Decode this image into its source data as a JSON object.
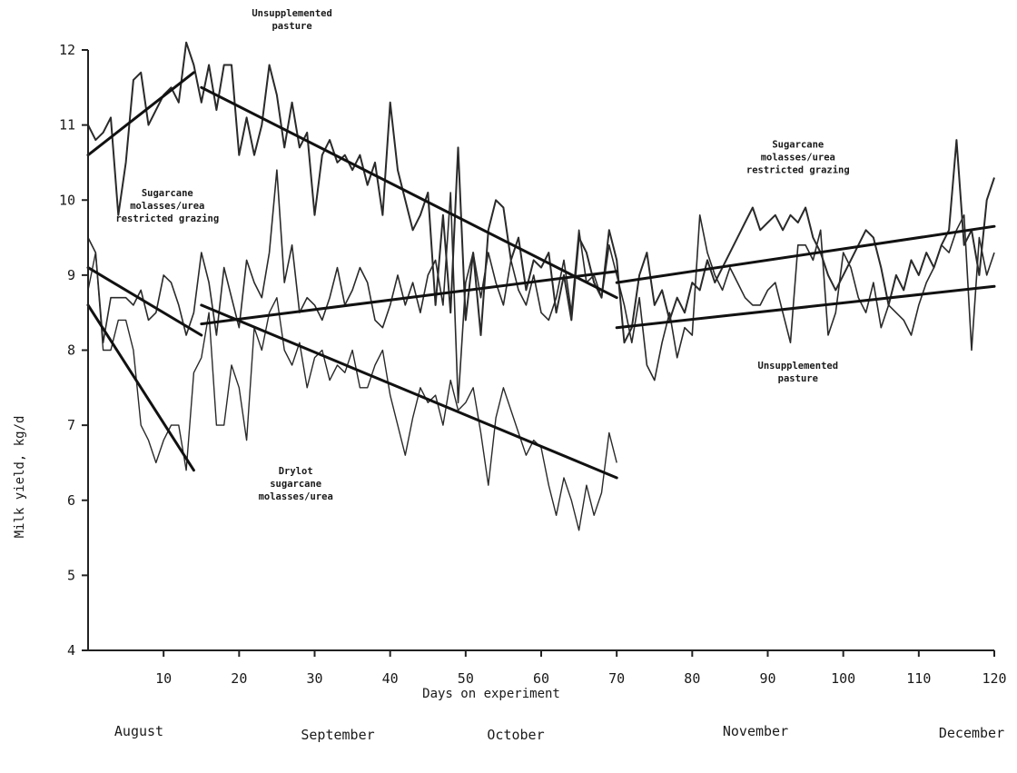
{
  "chart_data": {
    "type": "line",
    "title": "",
    "xlabel": "Days on experiment",
    "ylabel": "Milk yield, kg/d",
    "xlim": [
      0,
      120
    ],
    "ylim": [
      4,
      12
    ],
    "x_ticks": [
      10,
      20,
      30,
      40,
      50,
      60,
      70,
      80,
      90,
      100,
      110,
      120
    ],
    "y_ticks": [
      4,
      5,
      6,
      7,
      8,
      9,
      10,
      11,
      12
    ],
    "grid": false,
    "months": [
      "August",
      "September",
      "October",
      "November",
      "December"
    ],
    "annotations": [
      {
        "key": "unsupp_top",
        "lines": [
          "Unsupplemented",
          "pasture"
        ],
        "x": 27,
        "y": 12.45
      },
      {
        "key": "sug_left",
        "lines": [
          "Sugarcane",
          "molasses/urea",
          "restricted grazing"
        ],
        "x": 10.5,
        "y": 10.05
      },
      {
        "key": "drylot",
        "lines": [
          "Drylot",
          "sugarcane",
          "molasses/urea"
        ],
        "x": 27.5,
        "y": 6.35
      },
      {
        "key": "sug_right",
        "lines": [
          "Sugarcane",
          "molasses/urea",
          "restricted grazing"
        ],
        "x": 94,
        "y": 10.7
      },
      {
        "key": "unsupp_right",
        "lines": [
          "Unsupplemented",
          "pasture"
        ],
        "x": 94,
        "y": 7.75
      }
    ],
    "series": [
      {
        "x": [
          0,
          1,
          2,
          3,
          4,
          5,
          6,
          7,
          8,
          9,
          10,
          11,
          12,
          13,
          14,
          15,
          16,
          17,
          18,
          19,
          20,
          21,
          22,
          23,
          24,
          25,
          26,
          27,
          28,
          29,
          30,
          31,
          32,
          33,
          34,
          35,
          36,
          37,
          38,
          39,
          40,
          41,
          42,
          43,
          44,
          45,
          46,
          47,
          48,
          49,
          50,
          51,
          52,
          53,
          54,
          55,
          56,
          57,
          58,
          59,
          60,
          61,
          62,
          63,
          64,
          65,
          66,
          67,
          68,
          69,
          70,
          71,
          72,
          73,
          74,
          75,
          76,
          77,
          78,
          79,
          80,
          81,
          82,
          83,
          84,
          85,
          86,
          87,
          88,
          89,
          90,
          91,
          92,
          93,
          94,
          95,
          96,
          97,
          98,
          99,
          100,
          101,
          102,
          103,
          104,
          105,
          106,
          107,
          108,
          109,
          110,
          111,
          112,
          113,
          114,
          115,
          116,
          117,
          118,
          119,
          120
        ],
        "y": [
          11.0,
          10.8,
          10.9,
          11.1,
          9.8,
          10.5,
          11.6,
          11.7,
          11.0,
          11.2,
          11.4,
          11.5,
          11.3,
          12.1,
          11.8,
          11.3,
          11.8,
          11.2,
          11.8,
          11.8,
          10.6,
          11.1,
          10.6,
          11.0,
          11.8,
          11.4,
          10.7,
          11.3,
          10.7,
          10.9,
          9.8,
          10.6,
          10.8,
          10.5,
          10.6,
          10.4,
          10.6,
          10.2,
          10.5,
          9.8,
          11.3,
          10.4,
          10.0,
          9.6,
          9.8,
          10.1,
          8.6,
          9.8,
          8.5,
          10.7,
          8.4,
          9.3,
          8.2,
          9.6,
          10.0,
          9.9,
          9.2,
          9.5,
          8.8,
          9.2,
          9.1,
          9.3,
          8.5,
          9.0,
          8.4,
          9.5,
          9.3,
          8.9,
          8.7,
          9.6,
          9.2,
          8.1,
          8.3,
          9.0,
          9.3,
          8.6,
          8.8,
          8.4,
          8.7,
          8.5,
          8.9,
          8.8,
          9.2,
          8.9,
          9.1,
          9.3,
          9.5,
          9.7,
          9.9,
          9.6,
          9.7,
          9.8,
          9.6,
          9.8,
          9.7,
          9.9,
          9.5,
          9.3,
          9.0,
          8.8,
          9.0,
          9.2,
          9.4,
          9.6,
          9.5,
          9.1,
          8.6,
          9.0,
          8.8,
          9.2,
          9.0,
          9.3,
          9.1,
          9.4,
          9.6,
          10.8,
          9.4,
          9.6,
          9.0,
          10.0,
          10.3
        ]
      },
      {
        "x": [
          0,
          1,
          2,
          3,
          4,
          5,
          6,
          7,
          8,
          9,
          10,
          11,
          12,
          13,
          14,
          15,
          16,
          17,
          18,
          19,
          20,
          21,
          22,
          23,
          24,
          25,
          26,
          27,
          28,
          29,
          30,
          31,
          32,
          33,
          34,
          35,
          36,
          37,
          38,
          39,
          40,
          41,
          42,
          43,
          44,
          45,
          46,
          47,
          48,
          49,
          50,
          51,
          52,
          53,
          54,
          55,
          56,
          57,
          58,
          59,
          60,
          61,
          62,
          63,
          64,
          65,
          66,
          67,
          68,
          69,
          70,
          71,
          72,
          73,
          74,
          75,
          76,
          77,
          78,
          79,
          80,
          81,
          82,
          83,
          84,
          85,
          86,
          87,
          88,
          89,
          90,
          91,
          92,
          93,
          94,
          95,
          96,
          97,
          98,
          99,
          100,
          101,
          102,
          103,
          104,
          105,
          106,
          107,
          108,
          109,
          110,
          111,
          112,
          113,
          114,
          115,
          116,
          117,
          118,
          119,
          120
        ],
        "y": [
          9.5,
          9.3,
          8.1,
          8.7,
          8.7,
          8.7,
          8.6,
          8.8,
          8.4,
          8.5,
          9.0,
          8.9,
          8.6,
          8.2,
          8.5,
          9.3,
          8.9,
          8.2,
          9.1,
          8.7,
          8.3,
          9.2,
          8.9,
          8.7,
          9.3,
          10.4,
          8.9,
          9.4,
          8.5,
          8.7,
          8.6,
          8.4,
          8.7,
          9.1,
          8.6,
          8.8,
          9.1,
          8.9,
          8.4,
          8.3,
          8.6,
          9.0,
          8.6,
          8.9,
          8.5,
          9.0,
          9.2,
          8.6,
          10.1,
          7.3,
          8.9,
          9.3,
          8.7,
          9.3,
          8.9,
          8.6,
          9.2,
          8.8,
          8.6,
          9.0,
          8.5,
          8.4,
          8.7,
          9.2,
          8.5,
          9.6,
          8.9,
          9.0,
          8.7,
          9.4,
          9.0,
          8.6,
          8.1,
          8.7,
          7.8,
          7.6,
          8.1,
          8.5,
          7.9,
          8.3,
          8.2,
          9.8,
          9.3,
          9.0,
          8.8,
          9.1,
          8.9,
          8.7,
          8.6,
          8.6,
          8.8,
          8.9,
          8.5,
          8.1,
          9.4,
          9.4,
          9.2,
          9.6,
          8.2,
          8.5,
          9.3,
          9.1,
          8.7,
          8.5,
          8.9,
          8.3,
          8.6,
          8.5,
          8.4,
          8.2,
          8.6,
          8.9,
          9.1,
          9.4,
          9.3,
          9.6,
          9.8,
          8.0,
          9.5,
          9.0,
          9.3
        ]
      },
      {
        "x": [
          0,
          1,
          2,
          3,
          4,
          5,
          6,
          7,
          8,
          9,
          10,
          11,
          12,
          13,
          14,
          15,
          16,
          17,
          18,
          19,
          20,
          21,
          22,
          23,
          24,
          25,
          26,
          27,
          28,
          29,
          30,
          31,
          32,
          33,
          34,
          35,
          36,
          37,
          38,
          39,
          40,
          41,
          42,
          43,
          44,
          45,
          46,
          47,
          48,
          49,
          50,
          51,
          52,
          53,
          54,
          55,
          56,
          57,
          58,
          59,
          60,
          61,
          62,
          63,
          64,
          65,
          66,
          67,
          68,
          69,
          70
        ],
        "y": [
          8.8,
          9.3,
          8.0,
          8.0,
          8.4,
          8.4,
          8.0,
          7.0,
          6.8,
          6.5,
          6.8,
          7.0,
          7.0,
          6.4,
          7.7,
          7.9,
          8.5,
          7.0,
          7.0,
          7.8,
          7.5,
          6.8,
          8.3,
          8.0,
          8.5,
          8.7,
          8.0,
          7.8,
          8.1,
          7.5,
          7.9,
          8.0,
          7.6,
          7.8,
          7.7,
          8.0,
          7.5,
          7.5,
          7.8,
          8.0,
          7.4,
          7.0,
          6.6,
          7.1,
          7.5,
          7.3,
          7.4,
          7.0,
          7.6,
          7.2,
          7.3,
          7.5,
          6.9,
          6.2,
          7.1,
          7.5,
          7.2,
          6.9,
          6.6,
          6.8,
          6.7,
          6.2,
          5.8,
          6.3,
          6.0,
          5.6,
          6.2,
          5.8,
          6.1,
          6.9,
          6.5
        ]
      }
    ],
    "trend_lines": [
      {
        "x": [
          0,
          14
        ],
        "y": [
          10.6,
          11.7
        ]
      },
      {
        "x": [
          15,
          70
        ],
        "y": [
          11.5,
          8.7
        ]
      },
      {
        "x": [
          0,
          15
        ],
        "y": [
          9.1,
          8.2
        ]
      },
      {
        "x": [
          15,
          70
        ],
        "y": [
          8.35,
          9.05
        ]
      },
      {
        "x": [
          0,
          14
        ],
        "y": [
          8.6,
          6.4
        ]
      },
      {
        "x": [
          15,
          70
        ],
        "y": [
          8.6,
          6.3
        ]
      },
      {
        "x": [
          70,
          120
        ],
        "y": [
          8.9,
          9.65
        ]
      },
      {
        "x": [
          70,
          120
        ],
        "y": [
          8.3,
          8.85
        ]
      }
    ]
  }
}
